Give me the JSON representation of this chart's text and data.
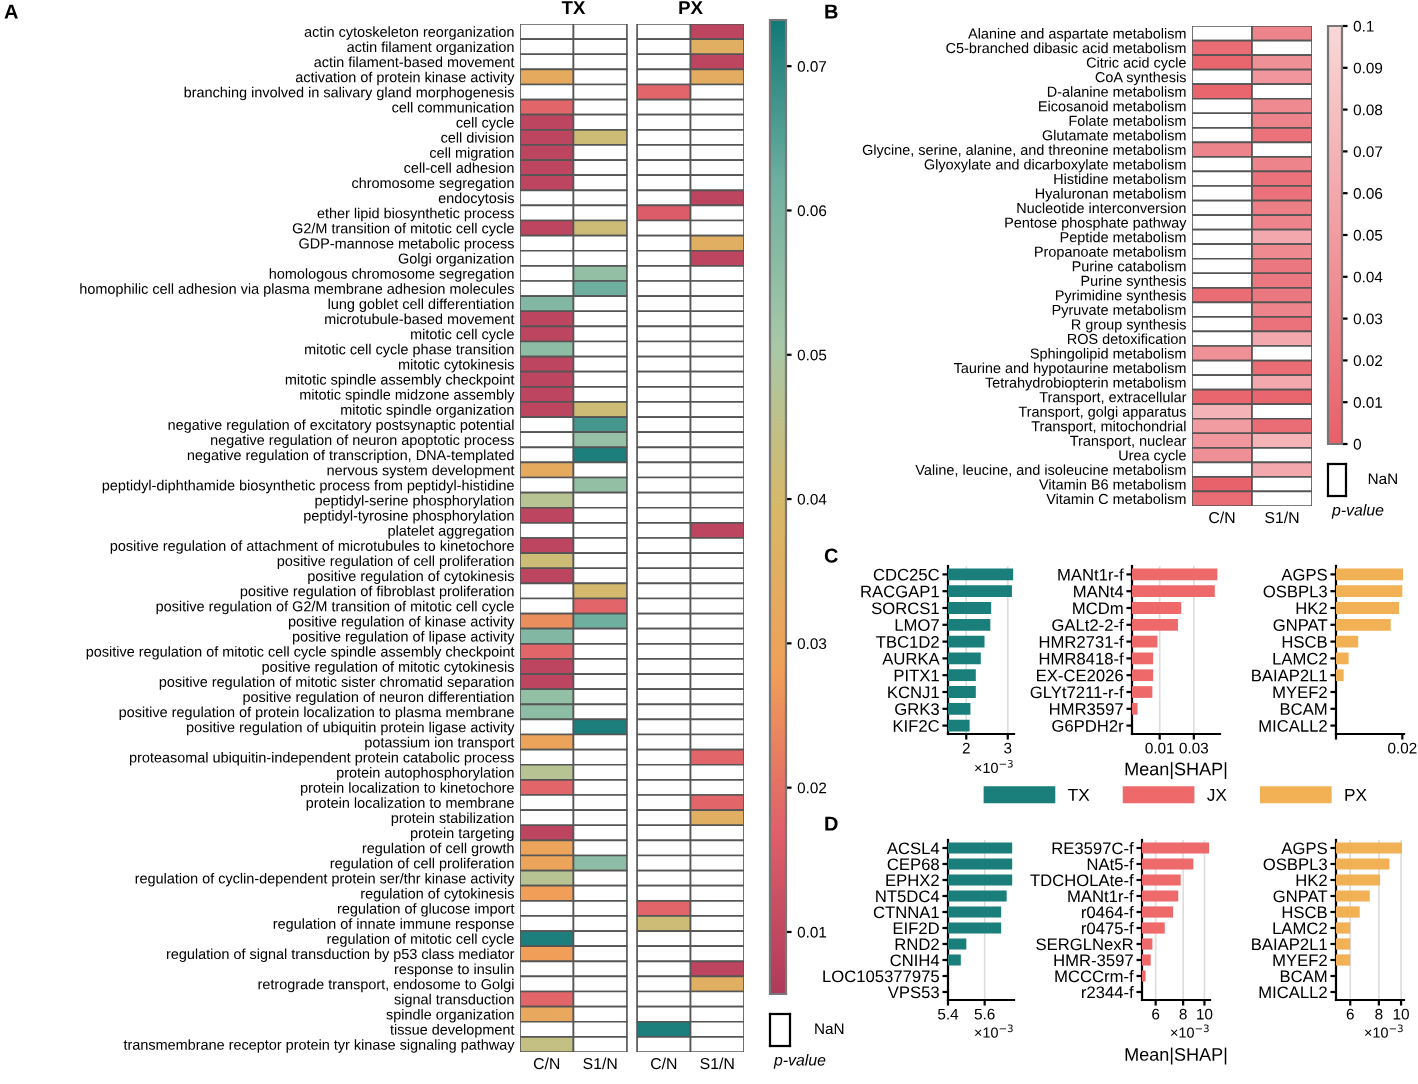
{
  "chart_data": [
    {
      "type": "heatmap",
      "annotations": [
        "A",
        "TX",
        "PX",
        "NaN"
      ],
      "categories": [
        "C/N",
        "S1/N",
        "C/N",
        "S1/N"
      ],
      "clabel": "p-value",
      "y_categories": [
        "actin cytoskeleton reorganization",
        "actin filament organization",
        "actin filament-based movement",
        "activation of protein kinase activity",
        "branching involved in salivary gland morphogenesis",
        "cell communication",
        "cell cycle",
        "cell division",
        "cell migration",
        "cell-cell adhesion",
        "chromosome segregation",
        "endocytosis",
        "ether lipid biosynthetic process",
        "G2/M transition of mitotic cell cycle",
        "GDP-mannose metabolic process",
        "Golgi organization",
        "homologous chromosome segregation",
        "homophilic cell adhesion via plasma membrane adhesion molecules",
        "lung goblet cell differentiation",
        "microtubule-based movement",
        "mitotic cell cycle",
        "mitotic cell cycle phase transition",
        "mitotic cytokinesis",
        "mitotic spindle assembly checkpoint",
        "mitotic spindle midzone assembly",
        "mitotic spindle organization",
        "negative regulation of excitatory postsynaptic potential",
        "negative regulation of neuron apoptotic process",
        "negative regulation of transcription, DNA-templated",
        "nervous system development",
        "peptidyl-diphthamide biosynthetic process from peptidyl-histidine",
        "peptidyl-serine phosphorylation",
        "peptidyl-tyrosine phosphorylation",
        "platelet aggregation",
        "positive regulation of attachment of microtubules to kinetochore",
        "positive regulation of cell proliferation",
        "positive regulation of cytokinesis",
        "positive regulation of fibroblast proliferation",
        "positive regulation of G2/M transition of mitotic cell cycle",
        "positive regulation of kinase activity",
        "positive regulation of lipase activity",
        "positive regulation of mitotic cell cycle spindle assembly checkpoint",
        "positive regulation of mitotic cytokinesis",
        "positive regulation of mitotic sister chromatid separation",
        "positive regulation of neuron differentiation",
        "positive regulation of protein localization to plasma membrane",
        "positive regulation of ubiquitin protein ligase activity",
        "potassium ion transport",
        "proteasomal ubiquitin-independent protein catabolic process",
        "protein autophosphorylation",
        "protein localization to kinetochore",
        "protein localization to membrane",
        "protein stabilization",
        "protein targeting",
        "regulation of cell growth",
        "regulation of cell proliferation",
        "regulation of cyclin-dependent protein ser/thr kinase activity",
        "regulation of cytokinesis",
        "regulation of glucose import",
        "regulation of innate immune response",
        "regulation of mitotic cell cycle",
        "regulation of signal transduction by p53 class mediator",
        "response to insulin",
        "retrograde transport, endosome to Golgi",
        "signal transduction",
        "spindle organization",
        "tissue development",
        "transmembrane receptor protein tyr kinase signaling pathway"
      ],
      "colors": [
        "#b03a5b",
        "#e0606a",
        "#f0a058",
        "#d8b868",
        "#a8c8a8",
        "#6fb0a0",
        "#137a78"
      ],
      "clim": [
        0.0057,
        0.0732
      ],
      "cticks": [
        0.01,
        0.02,
        0.03,
        0.04,
        0.05,
        0.06,
        0.07
      ],
      "cells": [
        [
          null,
          null,
          null,
          0.009
        ],
        [
          null,
          null,
          null,
          0.035
        ],
        [
          null,
          null,
          null,
          0.009
        ],
        [
          0.033,
          null,
          null,
          0.034
        ],
        [
          null,
          null,
          0.018,
          null
        ],
        [
          0.018,
          null,
          null,
          null
        ],
        [
          0.009,
          null,
          null,
          null
        ],
        [
          0.009,
          0.042,
          null,
          null
        ],
        [
          0.009,
          null,
          null,
          null
        ],
        [
          0.009,
          null,
          null,
          null
        ],
        [
          0.009,
          null,
          null,
          null
        ],
        [
          null,
          null,
          null,
          0.009
        ],
        [
          null,
          null,
          0.016,
          null
        ],
        [
          0.009,
          0.042,
          null,
          null
        ],
        [
          null,
          null,
          null,
          0.035
        ],
        [
          null,
          null,
          null,
          0.009
        ],
        [
          null,
          0.055,
          null,
          null
        ],
        [
          null,
          0.062,
          null,
          null
        ],
        [
          0.058,
          null,
          null,
          null
        ],
        [
          0.009,
          null,
          null,
          null
        ],
        [
          0.009,
          null,
          null,
          null
        ],
        [
          0.056,
          null,
          null,
          null
        ],
        [
          0.009,
          null,
          null,
          null
        ],
        [
          0.009,
          null,
          null,
          null
        ],
        [
          0.009,
          null,
          null,
          null
        ],
        [
          0.009,
          0.042,
          null,
          null
        ],
        [
          null,
          0.067,
          null,
          null
        ],
        [
          null,
          0.054,
          null,
          null
        ],
        [
          null,
          0.072,
          null,
          null
        ],
        [
          0.033,
          null,
          null,
          null
        ],
        [
          null,
          0.055,
          null,
          null
        ],
        [
          0.047,
          null,
          null,
          null
        ],
        [
          0.009,
          null,
          null,
          null
        ],
        [
          null,
          null,
          null,
          0.009
        ],
        [
          0.009,
          null,
          null,
          null
        ],
        [
          0.042,
          null,
          null,
          null
        ],
        [
          0.009,
          null,
          null,
          null
        ],
        [
          null,
          0.04,
          null,
          null
        ],
        [
          null,
          0.018,
          null,
          null
        ],
        [
          0.025,
          0.062,
          null,
          null
        ],
        [
          0.058,
          null,
          null,
          null
        ],
        [
          0.018,
          null,
          null,
          null
        ],
        [
          0.009,
          null,
          null,
          null
        ],
        [
          0.009,
          null,
          null,
          null
        ],
        [
          0.055,
          null,
          null,
          null
        ],
        [
          0.056,
          null,
          null,
          null
        ],
        [
          null,
          0.072,
          null,
          null
        ],
        [
          0.03,
          null,
          null,
          null
        ],
        [
          null,
          null,
          null,
          0.018
        ],
        [
          0.047,
          null,
          null,
          null
        ],
        [
          0.018,
          null,
          null,
          null
        ],
        [
          null,
          null,
          null,
          0.018
        ],
        [
          null,
          null,
          null,
          0.035
        ],
        [
          0.009,
          null,
          null,
          null
        ],
        [
          0.03,
          null,
          null,
          null
        ],
        [
          0.03,
          0.056,
          null,
          null
        ],
        [
          0.047,
          null,
          null,
          null
        ],
        [
          0.028,
          null,
          null,
          null
        ],
        [
          null,
          null,
          0.018,
          null
        ],
        [
          null,
          null,
          0.042,
          null
        ],
        [
          0.072,
          null,
          null,
          null
        ],
        [
          0.028,
          null,
          null,
          null
        ],
        [
          null,
          null,
          null,
          0.009
        ],
        [
          null,
          null,
          null,
          0.035
        ],
        [
          0.018,
          null,
          null,
          null
        ],
        [
          0.032,
          null,
          null,
          null
        ],
        [
          null,
          null,
          0.072,
          null
        ],
        [
          0.044,
          null,
          null,
          null
        ]
      ]
    },
    {
      "type": "heatmap",
      "annotations": [
        "B",
        "NaN"
      ],
      "categories": [
        "C/N",
        "S1/N"
      ],
      "clabel": "p-value",
      "y_categories": [
        "Alanine and aspartate metabolism",
        "C5-branched dibasic acid metabolism",
        "Citric acid cycle",
        "CoA synthesis",
        "D-alanine metabolism",
        "Eicosanoid metabolism",
        "Folate metabolism",
        "Glutamate metabolism",
        "Glycine, serine, alanine, and threonine metabolism",
        "Glyoxylate and dicarboxylate metabolism",
        "Histidine metabolism",
        "Hyaluronan metabolism",
        "Nucleotide interconversion",
        "Pentose phosphate pathway",
        "Peptide metabolism",
        "Propanoate metabolism",
        "Purine catabolism",
        "Purine synthesis",
        "Pyrimidine synthesis",
        "Pyruvate metabolism",
        "R group synthesis",
        "ROS detoxification",
        "Sphingolipid metabolism",
        "Taurine and hypotaurine metabolism",
        "Tetrahydrobiopterin metabolism",
        "Transport, extracellular",
        "Transport, golgi apparatus",
        "Transport, mitochondrial",
        "Transport, nuclear",
        "Urea cycle",
        "Valine, leucine, and isoleucine metabolism",
        "Vitamin B6 metabolism",
        "Vitamin C metabolism"
      ],
      "colors": [
        "#e8606a",
        "#f9d8d8"
      ],
      "clim": [
        0,
        0.1
      ],
      "cticks": [
        0,
        0.01,
        0.02,
        0.03,
        0.04,
        0.05,
        0.06,
        0.07,
        0.08,
        0.09,
        0.1
      ],
      "cells": [
        [
          null,
          0.03
        ],
        [
          0.01,
          null
        ],
        [
          0.005,
          0.04
        ],
        [
          null,
          0.045
        ],
        [
          0.005,
          null
        ],
        [
          null,
          0.035
        ],
        [
          null,
          0.03
        ],
        [
          null,
          0.015
        ],
        [
          0.03,
          null
        ],
        [
          null,
          0.03
        ],
        [
          null,
          0.015
        ],
        [
          null,
          0.015
        ],
        [
          null,
          0.025
        ],
        [
          null,
          0.03
        ],
        [
          null,
          0.06
        ],
        [
          null,
          0.035
        ],
        [
          null,
          0.02
        ],
        [
          null,
          0.02
        ],
        [
          0.01,
          0.02
        ],
        [
          null,
          0.03
        ],
        [
          null,
          0.015
        ],
        [
          null,
          0.06
        ],
        [
          0.04,
          null
        ],
        [
          null,
          0.01
        ],
        [
          null,
          0.06
        ],
        [
          0.005,
          0.005
        ],
        [
          0.07,
          null
        ],
        [
          0.05,
          0.01
        ],
        [
          0.045,
          0.07
        ],
        [
          0.04,
          null
        ],
        [
          null,
          0.06
        ],
        [
          0.002,
          null
        ],
        [
          0.01,
          null
        ]
      ]
    },
    {
      "type": "bar",
      "orientation": "horizontal",
      "title": "C",
      "annotations": [
        "×10$^{−3}$"
      ],
      "legend": "bottom",
      "grid": "x",
      "categories": [
        "CDC25C",
        "RACGAP1",
        "SORCS1",
        "LMO7",
        "TBC1D2",
        "AURKA",
        "PITX1",
        "KCNJ1",
        "GRK3",
        "KIF2C"
      ],
      "xlim": [
        1.56,
        3.15
      ],
      "xticks": [
        2,
        3
      ],
      "series": [
        {
          "name": "TX",
          "color": "#1a7f7a",
          "values": [
            3.13,
            3.1,
            2.6,
            2.58,
            2.44,
            2.35,
            2.23,
            2.23,
            2.1,
            2.08
          ]
        }
      ]
    },
    {
      "type": "bar",
      "orientation": "horizontal",
      "xlabel": "Mean|SHAP|",
      "legend": "bottom",
      "grid": "x",
      "log": "x",
      "categories": [
        "MANt1r-f",
        "MANt4",
        "MCDm",
        "GALt2-2-f",
        "HMR2731-f",
        "HMR8418-f",
        "EX-CE2026",
        "GLYt7211-r-f",
        "HMR3597",
        "G6PDH2r"
      ],
      "xlim": [
        0.0041,
        0.0697
      ],
      "xticks": [
        0.01,
        0.03
      ],
      "series": [
        {
          "name": "JX",
          "color": "#ee6a6a",
          "values": [
            0.064,
            0.059,
            0.02,
            0.018,
            0.0093,
            0.0081,
            0.0081,
            0.0079,
            0.0049,
            0.0041
          ]
        }
      ]
    },
    {
      "type": "bar",
      "orientation": "horizontal",
      "legend": "bottom",
      "categories": [
        "AGPS",
        "OSBPL3",
        "HK2",
        "GNPAT",
        "HSCB",
        "LAMC2",
        "BAIAP2L1",
        "MYEF2",
        "BCAM",
        "MICALL2"
      ],
      "xlim": [
        0,
        0.0205
      ],
      "xticks": [
        {
          "value": 0,
          "label": null
        },
        0.02
      ],
      "series": [
        {
          "name": "PX",
          "color": "#f2b155",
          "values": [
            0.0202,
            0.02,
            0.019,
            0.0165,
            0.0067,
            0.0038,
            0.0023,
            0,
            0,
            0
          ]
        }
      ]
    },
    {
      "type": "bar",
      "orientation": "horizontal",
      "title": "D",
      "annotations": [
        "×10$^{−3}$"
      ],
      "grid": "x",
      "categories": [
        "ACSL4",
        "CEP68",
        "EPHX2",
        "NT5DC4",
        "CTNNA1",
        "EIF2D",
        "RND2",
        "CNIH4",
        "LOC105377975",
        "VPS53"
      ],
      "xlim": [
        5.4,
        5.76
      ],
      "xticks": [
        5.4,
        5.6
      ],
      "series": [
        {
          "color": "#1a7f7a",
          "values": [
            5.75,
            5.75,
            5.75,
            5.72,
            5.69,
            5.69,
            5.5,
            5.47,
            5.4,
            5.4
          ]
        }
      ]
    },
    {
      "type": "bar",
      "orientation": "horizontal",
      "xlabel": "Mean|SHAP|",
      "annotations": [
        "×10$^{−3}$"
      ],
      "grid": "x",
      "log": "x",
      "categories": [
        "RE3597C-f",
        "NAt5-f",
        "TDCHOLAte-f",
        "MANt1r-f",
        "r0464-f",
        "r0475-f",
        "SERGLNexR",
        "HMR-3597",
        "MCCCrm-f",
        "r2344-f"
      ],
      "xlim": [
        5.2,
        10.6
      ],
      "xticks": [
        6,
        8,
        10
      ],
      "series": [
        {
          "color": "#ee6a6a",
          "values": [
            10.5,
            8.9,
            7.8,
            7.6,
            7.2,
            6.6,
            5.8,
            5.7,
            5.4,
            5.2
          ]
        }
      ]
    },
    {
      "type": "bar",
      "orientation": "horizontal",
      "annotations": [
        "×10$^{−3}$"
      ],
      "grid": "x",
      "log": "x",
      "categories": [
        "AGPS",
        "OSBPL3",
        "HK2",
        "GNPAT",
        "HSCB",
        "LAMC2",
        "BAIAP2L1",
        "MYEF2",
        "BCAM",
        "MICALL2"
      ],
      "xlim": [
        5.2,
        10.3
      ],
      "xticks": [
        6,
        8,
        10
      ],
      "series": [
        {
          "color": "#f2b155",
          "values": [
            10.1,
            8.9,
            8.1,
            7.3,
            6.6,
            6.0,
            6.0,
            6.0,
            5.2,
            5.2
          ]
        }
      ]
    }
  ]
}
